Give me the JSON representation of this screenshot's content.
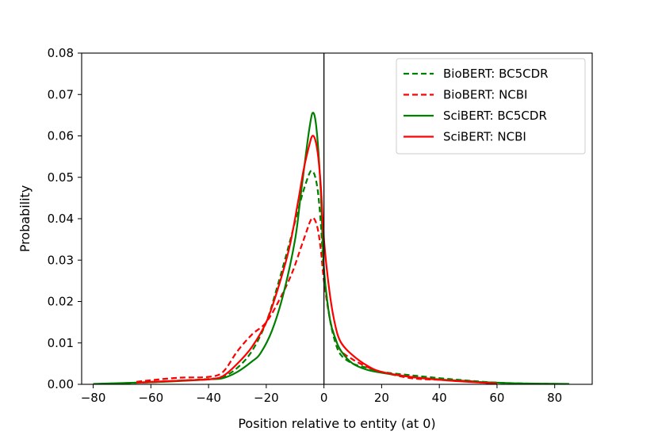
{
  "chart_data": {
    "type": "line",
    "title": "",
    "xlabel": "Position relative to entity (at 0)",
    "ylabel": "Probability",
    "xlim": [
      -84,
      93
    ],
    "ylim": [
      0,
      0.08
    ],
    "xticks": [
      -80,
      -60,
      -40,
      -20,
      0,
      20,
      40,
      60,
      80
    ],
    "xtick_labels": [
      "−80",
      "−60",
      "−40",
      "−20",
      "0",
      "20",
      "40",
      "60",
      "80"
    ],
    "yticks": [
      0,
      0.01,
      0.02,
      0.03,
      0.04,
      0.05,
      0.06,
      0.07,
      0.08
    ],
    "ytick_labels": [
      "0.00",
      "0.01",
      "0.02",
      "0.03",
      "0.04",
      "0.05",
      "0.06",
      "0.07",
      "0.08"
    ],
    "vline_x": 0,
    "grid": false,
    "legend_position": "top-right",
    "series": [
      {
        "name": "BioBERT: BC5CDR",
        "color": "#008000",
        "dash": "dashed",
        "x": [
          -78,
          -60,
          -50,
          -40,
          -35,
          -30,
          -25,
          -20,
          -16,
          -12,
          -9,
          -7,
          -5,
          -4,
          -3,
          -2,
          -1,
          0,
          2,
          4,
          6,
          10,
          15,
          20,
          30,
          40,
          50,
          60,
          70,
          80
        ],
        "y": [
          0.0001,
          0.0005,
          0.0009,
          0.0013,
          0.0018,
          0.004,
          0.008,
          0.015,
          0.024,
          0.034,
          0.042,
          0.047,
          0.051,
          0.0515,
          0.05,
          0.046,
          0.038,
          0.027,
          0.016,
          0.01,
          0.007,
          0.005,
          0.004,
          0.003,
          0.0022,
          0.0015,
          0.0009,
          0.0004,
          0.0002,
          0.0001
        ]
      },
      {
        "name": "BioBERT: NCBI",
        "color": "#ff0000",
        "dash": "dashed",
        "x": [
          -65,
          -60,
          -50,
          -40,
          -35,
          -30,
          -25,
          -20,
          -15,
          -11,
          -8,
          -6,
          -5,
          -4,
          -3,
          -2,
          -1,
          0,
          2,
          4,
          6,
          10,
          15,
          20,
          30,
          40,
          50,
          55,
          60
        ],
        "y": [
          0.0006,
          0.001,
          0.0016,
          0.0018,
          0.003,
          0.008,
          0.012,
          0.015,
          0.021,
          0.027,
          0.033,
          0.037,
          0.039,
          0.0402,
          0.0395,
          0.037,
          0.032,
          0.025,
          0.016,
          0.011,
          0.008,
          0.006,
          0.0042,
          0.003,
          0.0015,
          0.0011,
          0.0008,
          0.0004,
          0.0001
        ]
      },
      {
        "name": "SciBERT: BC5CDR",
        "color": "#008000",
        "dash": "solid",
        "x": [
          -80,
          -60,
          -50,
          -40,
          -35,
          -30,
          -25,
          -22,
          -18,
          -14,
          -10,
          -8,
          -6,
          -5,
          -4,
          -3,
          -2,
          -1,
          0,
          2,
          4,
          6,
          10,
          15,
          20,
          30,
          40,
          50,
          60,
          70,
          85
        ],
        "y": [
          0.0001,
          0.0005,
          0.0008,
          0.0012,
          0.0015,
          0.003,
          0.0055,
          0.0075,
          0.013,
          0.022,
          0.035,
          0.046,
          0.057,
          0.062,
          0.0655,
          0.064,
          0.057,
          0.045,
          0.028,
          0.016,
          0.011,
          0.008,
          0.005,
          0.0035,
          0.0028,
          0.0018,
          0.0012,
          0.0007,
          0.0004,
          0.0002,
          0.0001
        ]
      },
      {
        "name": "SciBERT: NCBI",
        "color": "#ff0000",
        "dash": "solid",
        "x": [
          -65,
          -60,
          -50,
          -40,
          -35,
          -30,
          -25,
          -20,
          -16,
          -12,
          -9,
          -7,
          -5,
          -4,
          -3,
          -2,
          -1,
          0,
          2,
          4,
          6,
          10,
          15,
          20,
          30,
          40,
          50,
          60
        ],
        "y": [
          0.0004,
          0.0006,
          0.0009,
          0.0012,
          0.002,
          0.005,
          0.009,
          0.015,
          0.023,
          0.033,
          0.044,
          0.052,
          0.058,
          0.06,
          0.059,
          0.055,
          0.047,
          0.035,
          0.022,
          0.014,
          0.01,
          0.007,
          0.0045,
          0.003,
          0.0018,
          0.0011,
          0.0006,
          0.0002
        ]
      }
    ]
  }
}
